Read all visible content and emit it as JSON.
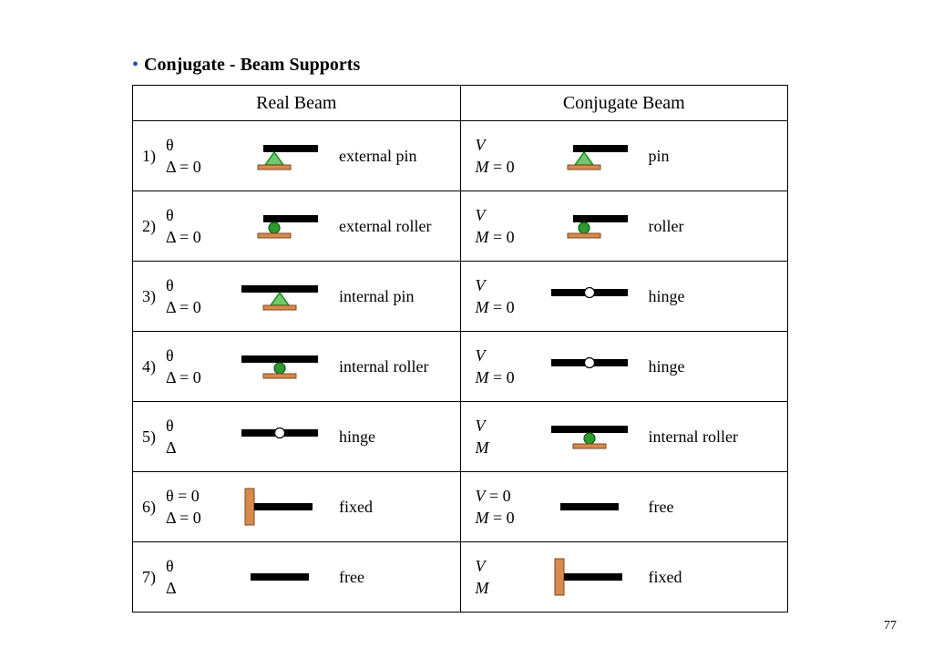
{
  "title": "Conjugate - Beam Supports",
  "page_number": "77",
  "headers": {
    "left": "Real Beam",
    "right": "Conjugate Beam"
  },
  "colors": {
    "beam": "#000000",
    "triangle_fill": "#6fc96f",
    "triangle_stroke": "#178a17",
    "ball_fill": "#2e9a2e",
    "ball_stroke": "#0e5a0e",
    "pin_ball_fill": "#ffffff",
    "base_fill": "#d68a4e",
    "base_stroke": "#7a4a22",
    "wall_fill": "#d68a4e",
    "wall_stroke": "#7a4a22",
    "bullet": "#2d3fbf"
  },
  "rows": [
    {
      "num": "1)",
      "real": {
        "l1": "θ",
        "l2": "Δ = 0",
        "label": "external pin",
        "diagram": "ext_pin"
      },
      "conj": {
        "l1": "V",
        "l2": "M = 0",
        "label": "pin",
        "diagram": "ext_pin"
      }
    },
    {
      "num": "2)",
      "real": {
        "l1": "θ",
        "l2": "Δ = 0",
        "label": "external roller",
        "diagram": "ext_roller"
      },
      "conj": {
        "l1": "V",
        "l2": "M = 0",
        "label": "roller",
        "diagram": "ext_roller"
      }
    },
    {
      "num": "3)",
      "real": {
        "l1": "θ",
        "l2": "Δ = 0",
        "label": "internal pin",
        "diagram": "int_pin"
      },
      "conj": {
        "l1": "V",
        "l2": "M = 0",
        "label": "hinge",
        "diagram": "hinge"
      }
    },
    {
      "num": "4)",
      "real": {
        "l1": "θ",
        "l2": "Δ = 0",
        "label": "internal roller",
        "diagram": "int_roller"
      },
      "conj": {
        "l1": "V",
        "l2": "M = 0",
        "label": "hinge",
        "diagram": "hinge"
      }
    },
    {
      "num": "5)",
      "real": {
        "l1": "θ",
        "l2": "Δ",
        "label": "hinge",
        "diagram": "hinge"
      },
      "conj": {
        "l1": "V",
        "l2": "M",
        "label": "internal roller",
        "diagram": "int_roller"
      }
    },
    {
      "num": "6)",
      "real": {
        "l1": "θ = 0",
        "l2": "Δ = 0",
        "label": "fixed",
        "diagram": "fixed_left"
      },
      "conj": {
        "l1": "V  = 0",
        "l2": "M = 0",
        "label": "free",
        "diagram": "free"
      }
    },
    {
      "num": "7)",
      "real": {
        "l1": "θ",
        "l2": "Δ",
        "label": "free",
        "diagram": "free"
      },
      "conj": {
        "l1": "V",
        "l2": "M",
        "label": "fixed",
        "diagram": "fixed_left"
      }
    }
  ]
}
